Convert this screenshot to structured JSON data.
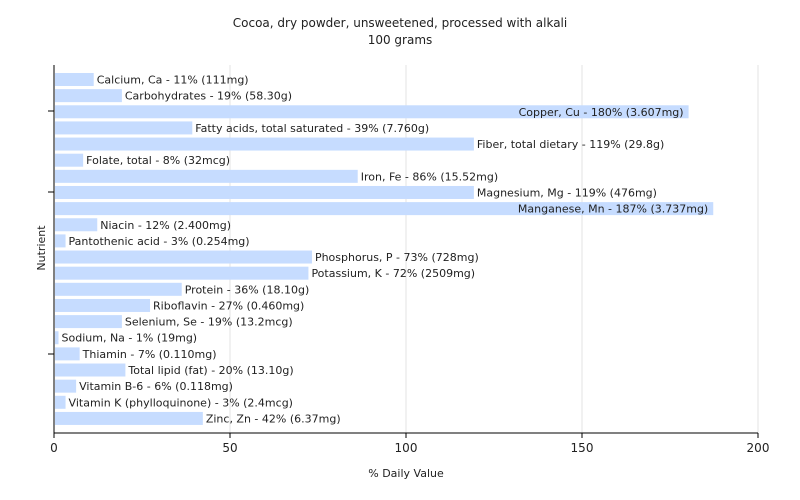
{
  "chart_data": {
    "type": "bar",
    "orientation": "horizontal",
    "title": "Cocoa, dry powder, unsweetened, processed with alkali",
    "subtitle": "100 grams",
    "xlabel": "% Daily Value",
    "ylabel": "Nutrient",
    "xlim": [
      0,
      200
    ],
    "xticks": [
      0,
      50,
      100,
      150,
      200
    ],
    "grid": true,
    "legend": "none",
    "bar_color": "#c6dcff",
    "categories": [
      "Calcium, Ca",
      "Carbohydrates",
      "Copper, Cu",
      "Fatty acids, total saturated",
      "Fiber, total dietary",
      "Folate, total",
      "Iron, Fe",
      "Magnesium, Mg",
      "Manganese, Mn",
      "Niacin",
      "Pantothenic acid",
      "Phosphorus, P",
      "Potassium, K",
      "Protein",
      "Riboflavin",
      "Selenium, Se",
      "Sodium, Na",
      "Thiamin",
      "Total lipid (fat)",
      "Vitamin B-6",
      "Vitamin K (phylloquinone)",
      "Zinc, Zn"
    ],
    "values": [
      11,
      19,
      180,
      39,
      119,
      8,
      86,
      119,
      187,
      12,
      3,
      73,
      72,
      36,
      27,
      19,
      1,
      7,
      20,
      6,
      3,
      42
    ],
    "labels": [
      "Calcium, Ca - 11% (111mg)",
      "Carbohydrates - 19% (58.30g)",
      "Copper, Cu - 180% (3.607mg)",
      "Fatty acids, total saturated - 39% (7.760g)",
      "Fiber, total dietary - 119% (29.8g)",
      "Folate, total - 8% (32mcg)",
      "Iron, Fe - 86% (15.52mg)",
      "Magnesium, Mg - 119% (476mg)",
      "Manganese, Mn - 187% (3.737mg)",
      "Niacin - 12% (2.400mg)",
      "Pantothenic acid - 3% (0.254mg)",
      "Phosphorus, P - 73% (728mg)",
      "Potassium, K - 72% (2509mg)",
      "Protein - 36% (18.10g)",
      "Riboflavin - 27% (0.460mg)",
      "Selenium, Se - 19% (13.2mcg)",
      "Sodium, Na - 1% (19mg)",
      "Thiamin - 7% (0.110mg)",
      "Total lipid (fat) - 20% (13.10g)",
      "Vitamin B-6 - 6% (0.118mg)",
      "Vitamin K (phylloquinone) - 3% (2.4mcg)",
      "Zinc, Zn - 42% (6.37mg)"
    ]
  }
}
